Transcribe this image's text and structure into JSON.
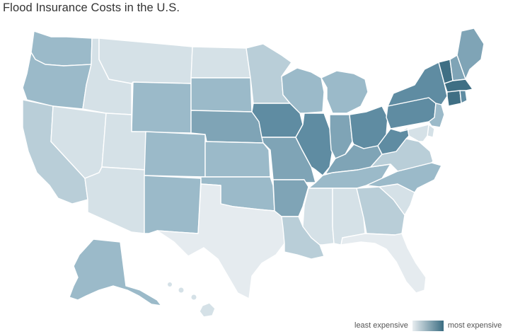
{
  "title": "Flood Insurance Costs in the U.S.",
  "legend": {
    "low_label": "least expensive",
    "high_label": "most expensive",
    "color_low": "#e8edf0",
    "color_high": "#3a6d82"
  },
  "colors": {
    "level_1": "#e5ebef",
    "level_2": "#d5e1e7",
    "level_3": "#b9ced8",
    "level_4": "#9bbac9",
    "level_5": "#7fa4b6",
    "level_6": "#5f8ca2",
    "level_7": "#3f6f84"
  },
  "states": [
    {
      "code": "WA",
      "level": 4
    },
    {
      "code": "OR",
      "level": 4
    },
    {
      "code": "CA",
      "level": 3
    },
    {
      "code": "NV",
      "level": 2
    },
    {
      "code": "ID",
      "level": 2
    },
    {
      "code": "MT",
      "level": 2
    },
    {
      "code": "WY",
      "level": 4
    },
    {
      "code": "UT",
      "level": 2
    },
    {
      "code": "AZ",
      "level": 2
    },
    {
      "code": "CO",
      "level": 4
    },
    {
      "code": "NM",
      "level": 4
    },
    {
      "code": "ND",
      "level": 2
    },
    {
      "code": "SD",
      "level": 4
    },
    {
      "code": "NE",
      "level": 5
    },
    {
      "code": "KS",
      "level": 4
    },
    {
      "code": "OK",
      "level": 4
    },
    {
      "code": "TX",
      "level": 1
    },
    {
      "code": "MN",
      "level": 3
    },
    {
      "code": "IA",
      "level": 6
    },
    {
      "code": "MO",
      "level": 5
    },
    {
      "code": "AR",
      "level": 5
    },
    {
      "code": "LA",
      "level": 3
    },
    {
      "code": "WI",
      "level": 4
    },
    {
      "code": "IL",
      "level": 6
    },
    {
      "code": "MI",
      "level": 4
    },
    {
      "code": "IN",
      "level": 5
    },
    {
      "code": "OH",
      "level": 6
    },
    {
      "code": "KY",
      "level": 5
    },
    {
      "code": "TN",
      "level": 4
    },
    {
      "code": "MS",
      "level": 2
    },
    {
      "code": "AL",
      "level": 2
    },
    {
      "code": "GA",
      "level": 3
    },
    {
      "code": "FL",
      "level": 1
    },
    {
      "code": "SC",
      "level": 2
    },
    {
      "code": "NC",
      "level": 4
    },
    {
      "code": "VA",
      "level": 3
    },
    {
      "code": "WV",
      "level": 6
    },
    {
      "code": "PA",
      "level": 6
    },
    {
      "code": "NY",
      "level": 6
    },
    {
      "code": "VT",
      "level": 7
    },
    {
      "code": "NH",
      "level": 5
    },
    {
      "code": "ME",
      "level": 5
    },
    {
      "code": "MA",
      "level": 7
    },
    {
      "code": "CT",
      "level": 7
    },
    {
      "code": "RI",
      "level": 6
    },
    {
      "code": "NJ",
      "level": 4
    },
    {
      "code": "DE",
      "level": 2
    },
    {
      "code": "MD",
      "level": 2
    },
    {
      "code": "AK",
      "level": 4
    },
    {
      "code": "HI",
      "level": 2
    }
  ]
}
